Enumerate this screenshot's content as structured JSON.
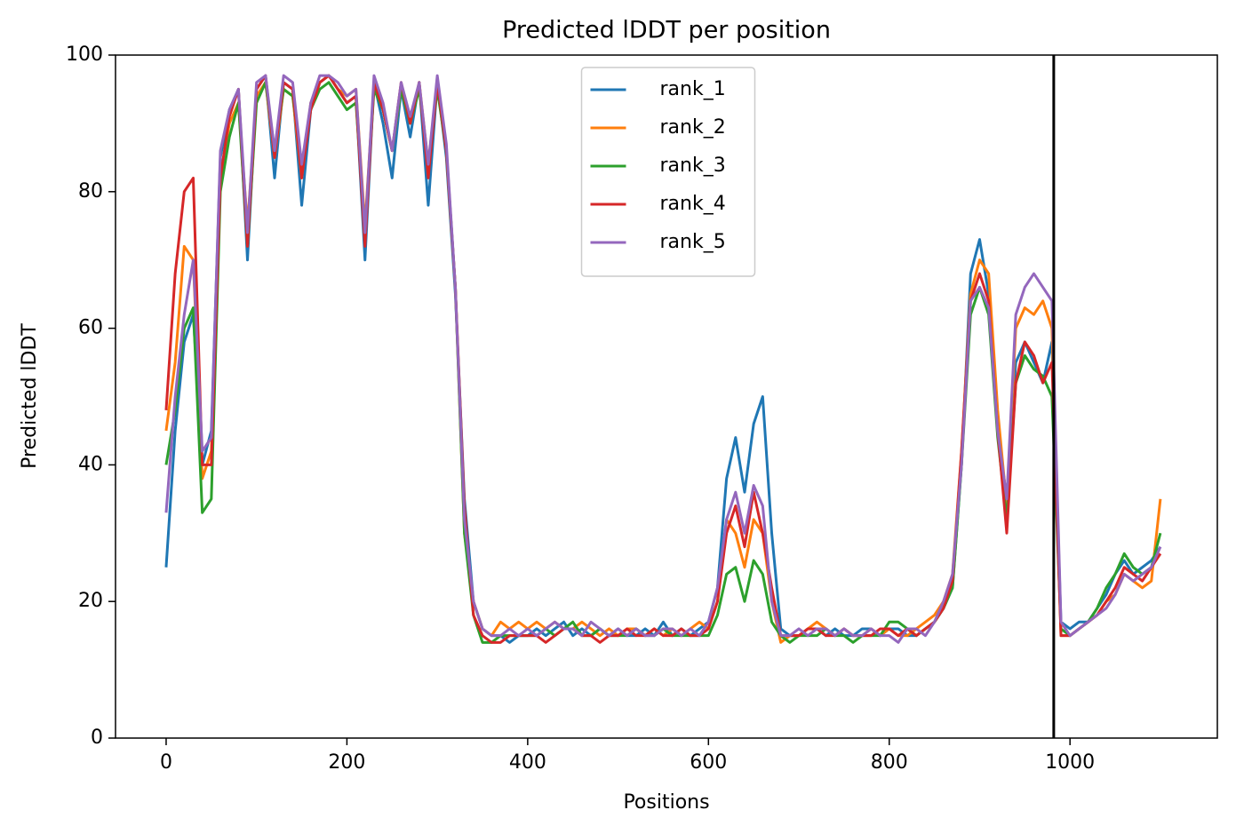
{
  "chart_data": {
    "type": "line",
    "title": "Predicted lDDT per position",
    "xlabel": "Positions",
    "ylabel": "Predicted lDDT",
    "xlim": [
      -56,
      1163
    ],
    "ylim": [
      0,
      100
    ],
    "xticks": [
      0,
      200,
      400,
      600,
      800,
      1000
    ],
    "yticks": [
      0,
      20,
      40,
      60,
      80,
      100
    ],
    "legend": "upper center",
    "vline": 982,
    "vline_color": "#000000",
    "x": [
      0,
      10,
      20,
      30,
      40,
      50,
      60,
      70,
      80,
      90,
      100,
      110,
      120,
      130,
      140,
      150,
      160,
      170,
      180,
      190,
      200,
      210,
      220,
      230,
      240,
      250,
      260,
      270,
      280,
      290,
      300,
      310,
      320,
      330,
      340,
      350,
      360,
      370,
      380,
      390,
      400,
      410,
      420,
      430,
      440,
      450,
      460,
      470,
      480,
      490,
      500,
      510,
      520,
      530,
      540,
      550,
      560,
      570,
      580,
      590,
      600,
      610,
      620,
      630,
      640,
      650,
      660,
      670,
      680,
      690,
      700,
      710,
      720,
      730,
      740,
      750,
      760,
      770,
      780,
      790,
      800,
      810,
      820,
      830,
      840,
      850,
      860,
      870,
      880,
      890,
      900,
      910,
      920,
      930,
      940,
      950,
      960,
      970,
      980,
      990,
      1000,
      1010,
      1020,
      1030,
      1040,
      1050,
      1060,
      1070,
      1080,
      1090,
      1100
    ],
    "series": [
      {
        "name": "rank_1",
        "color": "#1f77b4",
        "values": [
          25,
          45,
          58,
          62,
          40,
          45,
          85,
          92,
          95,
          70,
          95,
          97,
          82,
          96,
          95,
          78,
          92,
          96,
          97,
          95,
          93,
          94,
          70,
          96,
          90,
          82,
          95,
          88,
          96,
          78,
          96,
          85,
          65,
          35,
          20,
          16,
          15,
          15,
          14,
          15,
          15,
          16,
          15,
          16,
          17,
          15,
          16,
          15,
          16,
          15,
          16,
          15,
          15,
          16,
          15,
          17,
          15,
          16,
          15,
          16,
          17,
          22,
          38,
          44,
          36,
          46,
          50,
          30,
          16,
          15,
          15,
          16,
          16,
          15,
          16,
          15,
          15,
          16,
          16,
          15,
          16,
          16,
          15,
          15,
          16,
          17,
          19,
          22,
          40,
          68,
          73,
          65,
          45,
          35,
          55,
          58,
          55,
          52,
          58,
          17,
          16,
          17,
          17,
          19,
          21,
          24,
          26,
          24,
          25,
          26,
          28
        ]
      },
      {
        "name": "rank_2",
        "color": "#ff7f0e",
        "values": [
          45,
          55,
          72,
          70,
          38,
          42,
          82,
          90,
          93,
          75,
          94,
          96,
          85,
          95,
          94,
          82,
          93,
          96,
          97,
          95,
          94,
          95,
          75,
          96,
          92,
          86,
          95,
          90,
          96,
          84,
          96,
          86,
          66,
          30,
          20,
          16,
          15,
          17,
          16,
          17,
          16,
          17,
          16,
          17,
          16,
          16,
          17,
          16,
          15,
          16,
          15,
          16,
          16,
          15,
          16,
          15,
          16,
          15,
          16,
          17,
          16,
          20,
          32,
          30,
          25,
          32,
          30,
          20,
          14,
          15,
          15,
          16,
          17,
          16,
          15,
          16,
          15,
          15,
          16,
          15,
          16,
          15,
          15,
          16,
          17,
          18,
          20,
          24,
          42,
          65,
          70,
          68,
          48,
          34,
          60,
          63,
          62,
          64,
          60,
          15,
          15,
          16,
          17,
          18,
          20,
          21,
          24,
          23,
          22,
          23,
          35
        ]
      },
      {
        "name": "rank_3",
        "color": "#2ca02c",
        "values": [
          40,
          48,
          60,
          63,
          33,
          35,
          80,
          88,
          93,
          72,
          93,
          96,
          86,
          95,
          94,
          84,
          92,
          95,
          96,
          94,
          92,
          93,
          74,
          95,
          92,
          86,
          95,
          90,
          95,
          84,
          95,
          86,
          66,
          30,
          18,
          14,
          14,
          15,
          15,
          15,
          15,
          15,
          16,
          15,
          16,
          17,
          15,
          15,
          16,
          15,
          15,
          15,
          16,
          15,
          15,
          16,
          15,
          15,
          15,
          15,
          15,
          18,
          24,
          25,
          20,
          26,
          24,
          17,
          15,
          14,
          15,
          15,
          15,
          16,
          15,
          15,
          14,
          15,
          15,
          15,
          17,
          17,
          16,
          15,
          16,
          17,
          19,
          22,
          40,
          62,
          66,
          62,
          44,
          32,
          52,
          56,
          54,
          53,
          50,
          16,
          15,
          16,
          17,
          19,
          22,
          24,
          27,
          25,
          24,
          25,
          30
        ]
      },
      {
        "name": "rank_4",
        "color": "#d62728",
        "values": [
          48,
          68,
          80,
          82,
          40,
          40,
          82,
          91,
          95,
          72,
          95,
          97,
          85,
          96,
          95,
          82,
          92,
          96,
          97,
          95,
          93,
          94,
          72,
          96,
          92,
          86,
          96,
          90,
          96,
          82,
          96,
          86,
          66,
          34,
          18,
          15,
          14,
          14,
          15,
          15,
          15,
          15,
          14,
          15,
          16,
          16,
          15,
          15,
          14,
          15,
          15,
          16,
          15,
          15,
          16,
          15,
          15,
          16,
          15,
          15,
          16,
          20,
          30,
          34,
          28,
          36,
          30,
          22,
          15,
          15,
          15,
          16,
          16,
          15,
          15,
          16,
          15,
          15,
          15,
          16,
          16,
          15,
          16,
          15,
          16,
          17,
          19,
          23,
          42,
          64,
          68,
          64,
          45,
          30,
          52,
          58,
          56,
          52,
          55,
          15,
          15,
          16,
          17,
          18,
          20,
          22,
          25,
          24,
          23,
          25,
          27
        ]
      },
      {
        "name": "rank_5",
        "color": "#9467bd",
        "values": [
          33,
          50,
          62,
          70,
          42,
          44,
          86,
          92,
          95,
          74,
          96,
          97,
          86,
          97,
          96,
          84,
          93,
          97,
          97,
          96,
          94,
          95,
          74,
          97,
          93,
          86,
          96,
          91,
          96,
          84,
          97,
          87,
          66,
          32,
          20,
          16,
          15,
          15,
          16,
          15,
          16,
          15,
          16,
          17,
          16,
          16,
          15,
          17,
          16,
          15,
          16,
          15,
          16,
          15,
          15,
          16,
          16,
          15,
          16,
          15,
          17,
          22,
          32,
          36,
          30,
          37,
          34,
          20,
          15,
          15,
          16,
          15,
          16,
          16,
          15,
          16,
          15,
          15,
          16,
          15,
          15,
          14,
          16,
          16,
          15,
          17,
          20,
          24,
          40,
          64,
          66,
          63,
          45,
          35,
          62,
          66,
          68,
          66,
          64,
          17,
          15,
          16,
          17,
          18,
          19,
          21,
          24,
          23,
          24,
          25,
          28
        ]
      }
    ]
  }
}
